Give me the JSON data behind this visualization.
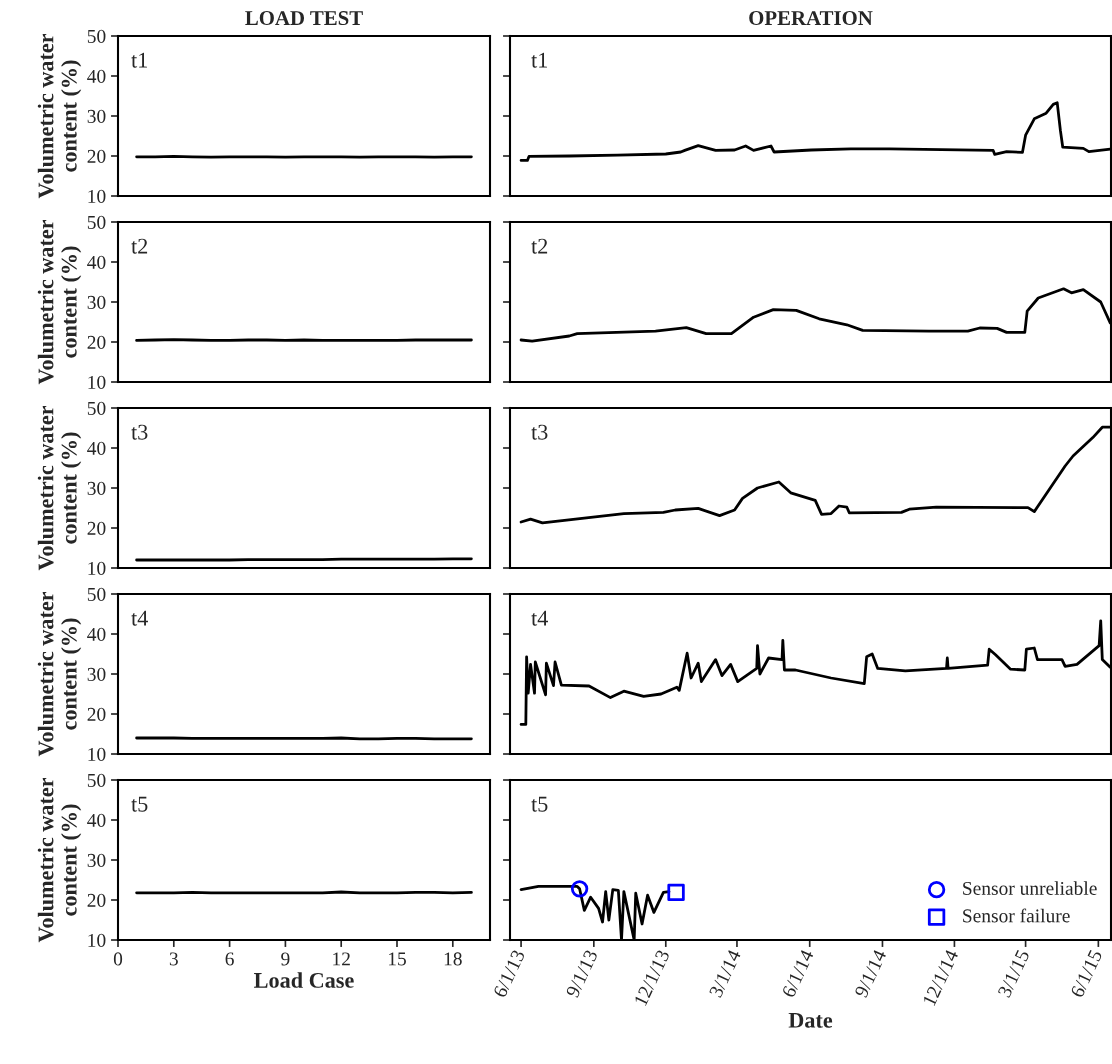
{
  "chart_data": [
    {
      "type": "line",
      "title": "LOAD TEST",
      "annotations": [
        "t1"
      ],
      "ylabel": "Volumetric water\ncontent (%)",
      "xlim": [
        0,
        20
      ],
      "xticks": [
        0,
        3,
        6,
        9,
        12,
        15,
        18
      ],
      "ylim": [
        10,
        50
      ],
      "yticks": [
        10,
        20,
        30,
        40,
        50
      ],
      "tick_labels": "y",
      "color": "#000000",
      "x": [
        1,
        2,
        3,
        4,
        5,
        6,
        7,
        8,
        9,
        10,
        11,
        12,
        13,
        14,
        15,
        16,
        17,
        18,
        19
      ],
      "values": [
        19.8,
        19.8,
        19.9,
        19.8,
        19.7,
        19.8,
        19.8,
        19.8,
        19.7,
        19.8,
        19.8,
        19.8,
        19.7,
        19.8,
        19.8,
        19.8,
        19.7,
        19.8,
        19.8
      ]
    },
    {
      "type": "line",
      "title": "OPERATION",
      "annotations": [
        "t1"
      ],
      "xlim": [
        "2013-05-18",
        "2015-06-17"
      ],
      "ylim": [
        10,
        50
      ],
      "yticks": [
        10,
        20,
        30,
        40,
        50
      ],
      "tick_labels": false,
      "color": "#000000",
      "x": [
        "2013-06-01",
        "2013-06-09",
        "2013-06-11",
        "2013-08-01",
        "2013-10-01",
        "2013-12-01",
        "2013-12-20",
        "2013-12-25",
        "2014-01-11",
        "2014-02-02",
        "2014-02-26",
        "2014-03-12",
        "2014-03-22",
        "2014-04-13",
        "2014-04-17",
        "2014-06-03",
        "2014-07-23",
        "2014-09-10",
        "2015-01-19",
        "2015-01-21",
        "2015-02-05",
        "2015-02-25",
        "2015-03-01",
        "2015-03-12",
        "2015-03-27",
        "2015-04-05",
        "2015-04-10",
        "2015-04-14",
        "2015-04-17",
        "2015-05-13",
        "2015-05-20",
        "2015-06-16"
      ],
      "values": [
        18.9,
        18.9,
        19.9,
        20.0,
        20.2,
        20.5,
        21.0,
        21.4,
        22.6,
        21.4,
        21.5,
        22.5,
        21.4,
        22.5,
        21.0,
        21.5,
        21.8,
        21.8,
        21.4,
        20.4,
        21.1,
        20.9,
        25.2,
        29.3,
        30.7,
        32.9,
        33.3,
        26.4,
        22.2,
        21.9,
        21.1,
        21.7
      ]
    },
    {
      "type": "line",
      "annotations": [
        "t2"
      ],
      "ylabel": "Volumetric water\ncontent (%)",
      "xlim": [
        0,
        20
      ],
      "xticks": [
        0,
        3,
        6,
        9,
        12,
        15,
        18
      ],
      "ylim": [
        10,
        50
      ],
      "yticks": [
        10,
        20,
        30,
        40,
        50
      ],
      "tick_labels": "y",
      "color": "#000000",
      "x": [
        1,
        2,
        3,
        4,
        5,
        6,
        7,
        8,
        9,
        10,
        11,
        12,
        13,
        14,
        15,
        16,
        17,
        18,
        19
      ],
      "values": [
        20.4,
        20.5,
        20.6,
        20.5,
        20.4,
        20.4,
        20.5,
        20.5,
        20.4,
        20.5,
        20.4,
        20.4,
        20.4,
        20.4,
        20.4,
        20.5,
        20.5,
        20.5,
        20.5
      ]
    },
    {
      "type": "line",
      "annotations": [
        "t2"
      ],
      "xlim": [
        "2013-05-18",
        "2015-06-17"
      ],
      "ylim": [
        10,
        50
      ],
      "yticks": [
        10,
        20,
        30,
        40,
        50
      ],
      "tick_labels": false,
      "color": "#000000",
      "x": [
        "2013-06-01",
        "2013-06-15",
        "2013-08-01",
        "2013-08-11",
        "2013-11-18",
        "2013-12-27",
        "2014-01-21",
        "2014-02-22",
        "2014-03-22",
        "2014-04-16",
        "2014-05-15",
        "2014-06-13",
        "2014-07-18",
        "2014-08-07",
        "2014-10-30",
        "2014-12-18",
        "2015-01-02",
        "2015-01-24",
        "2015-02-05",
        "2015-02-28",
        "2015-03-03",
        "2015-03-17",
        "2015-04-18",
        "2015-04-28",
        "2015-05-13",
        "2015-06-04",
        "2015-06-16"
      ],
      "values": [
        20.5,
        20.2,
        21.5,
        22.1,
        22.7,
        23.6,
        22.1,
        22.1,
        26.2,
        28.1,
        27.9,
        25.8,
        24.3,
        22.9,
        22.7,
        22.7,
        23.5,
        23.4,
        22.4,
        22.4,
        27.7,
        31.0,
        33.3,
        32.3,
        33.1,
        30.0,
        24.8
      ]
    },
    {
      "type": "line",
      "annotations": [
        "t3"
      ],
      "ylabel": "Volumetric water\ncontent (%)",
      "xlim": [
        0,
        20
      ],
      "xticks": [
        0,
        3,
        6,
        9,
        12,
        15,
        18
      ],
      "ylim": [
        10,
        50
      ],
      "yticks": [
        10,
        20,
        30,
        40,
        50
      ],
      "tick_labels": "y",
      "color": "#000000",
      "x": [
        1,
        2,
        3,
        4,
        5,
        6,
        7,
        8,
        9,
        10,
        11,
        12,
        13,
        14,
        15,
        16,
        17,
        18,
        19
      ],
      "values": [
        12.0,
        12.0,
        12.0,
        12.0,
        12.0,
        12.0,
        12.1,
        12.1,
        12.1,
        12.1,
        12.1,
        12.2,
        12.2,
        12.2,
        12.2,
        12.2,
        12.2,
        12.3,
        12.3
      ]
    },
    {
      "type": "line",
      "annotations": [
        "t3"
      ],
      "xlim": [
        "2013-05-18",
        "2015-06-17"
      ],
      "ylim": [
        10,
        50
      ],
      "yticks": [
        10,
        20,
        30,
        40,
        50
      ],
      "tick_labels": false,
      "color": "#000000",
      "x": [
        "2013-06-01",
        "2013-06-13",
        "2013-06-28",
        "2013-10-09",
        "2013-11-28",
        "2013-12-13",
        "2014-01-11",
        "2014-02-07",
        "2014-02-26",
        "2014-03-08",
        "2014-03-27",
        "2014-04-23",
        "2014-05-08",
        "2014-06-08",
        "2014-06-16",
        "2014-06-28",
        "2014-07-08",
        "2014-07-18",
        "2014-07-21",
        "2014-09-25",
        "2014-10-05",
        "2014-11-08",
        "2015-03-04",
        "2015-03-12",
        "2015-04-20",
        "2015-04-30",
        "2015-05-25",
        "2015-06-06",
        "2015-06-16"
      ],
      "values": [
        21.5,
        22.2,
        21.3,
        23.6,
        23.9,
        24.5,
        24.9,
        23.1,
        24.5,
        27.4,
        30.0,
        31.5,
        28.8,
        26.9,
        23.4,
        23.6,
        25.5,
        25.2,
        23.8,
        23.9,
        24.7,
        25.2,
        25.1,
        24.1,
        35.5,
        38.0,
        42.6,
        45.2,
        45.2
      ]
    },
    {
      "type": "line",
      "annotations": [
        "t4"
      ],
      "ylabel": "Volumetric water\ncontent (%)",
      "xlim": [
        0,
        20
      ],
      "xticks": [
        0,
        3,
        6,
        9,
        12,
        15,
        18
      ],
      "ylim": [
        10,
        50
      ],
      "yticks": [
        10,
        20,
        30,
        40,
        50
      ],
      "tick_labels": "y",
      "color": "#000000",
      "x": [
        1,
        2,
        3,
        4,
        5,
        6,
        7,
        8,
        9,
        10,
        11,
        12,
        13,
        14,
        15,
        16,
        17,
        18,
        19
      ],
      "values": [
        14.0,
        14.0,
        14.0,
        13.9,
        13.9,
        13.9,
        13.9,
        13.9,
        13.9,
        13.9,
        13.9,
        14.0,
        13.8,
        13.8,
        13.9,
        13.9,
        13.8,
        13.8,
        13.8
      ]
    },
    {
      "type": "line",
      "annotations": [
        "t4"
      ],
      "xlim": [
        "2013-05-18",
        "2015-06-17"
      ],
      "ylim": [
        10,
        50
      ],
      "yticks": [
        10,
        20,
        30,
        40,
        50
      ],
      "tick_labels": false,
      "color": "#000000",
      "x": [
        "2013-06-01",
        "2013-06-07",
        "2013-06-08",
        "2013-06-10",
        "2013-06-13",
        "2013-06-18",
        "2013-06-19",
        "2013-07-02",
        "2013-07-03",
        "2013-07-12",
        "2013-07-14",
        "2013-07-22",
        "2013-08-26",
        "2013-09-22",
        "2013-10-09",
        "2013-11-03",
        "2013-11-25",
        "2013-12-15",
        "2013-12-18",
        "2013-12-28",
        "2014-01-02",
        "2014-01-11",
        "2014-01-15",
        "2014-02-02",
        "2014-02-10",
        "2014-02-21",
        "2014-03-02",
        "2014-03-26",
        "2014-03-27",
        "2014-03-30",
        "2014-04-10",
        "2014-04-27",
        "2014-04-28",
        "2014-04-30",
        "2014-05-14",
        "2014-06-28",
        "2014-08-09",
        "2014-08-12",
        "2014-08-19",
        "2014-08-26",
        "2014-09-30",
        "2014-11-21",
        "2014-11-22",
        "2014-11-23",
        "2015-01-12",
        "2015-01-14",
        "2015-01-22",
        "2015-02-10",
        "2015-02-28",
        "2015-03-02",
        "2015-03-12",
        "2015-03-16",
        "2015-04-16",
        "2015-04-20",
        "2015-05-05",
        "2015-06-02",
        "2015-06-04",
        "2015-06-06",
        "2015-06-16"
      ],
      "values": [
        17.4,
        17.4,
        34.3,
        25.2,
        32.4,
        25.2,
        33.0,
        24.8,
        32.7,
        27.1,
        33.0,
        27.2,
        27.0,
        24.1,
        25.7,
        24.4,
        25.0,
        26.7,
        25.9,
        35.2,
        29.0,
        32.7,
        28.1,
        33.6,
        29.6,
        32.4,
        28.1,
        31.4,
        37.1,
        30.0,
        34.0,
        33.6,
        38.4,
        31.0,
        31.0,
        29.0,
        27.6,
        34.3,
        35.0,
        31.4,
        30.8,
        31.4,
        34.0,
        31.4,
        32.2,
        36.2,
        34.8,
        31.2,
        31.0,
        36.2,
        36.5,
        33.6,
        33.6,
        31.9,
        32.4,
        37.1,
        43.3,
        33.6,
        31.7
      ]
    },
    {
      "type": "line",
      "annotations": [
        "t5"
      ],
      "xlabel": "Load Case",
      "ylabel": "Volumetric water\ncontent (%)",
      "xlim": [
        0,
        20
      ],
      "xticks": [
        0,
        3,
        6,
        9,
        12,
        15,
        18
      ],
      "ylim": [
        10,
        50
      ],
      "yticks": [
        10,
        20,
        30,
        40,
        50
      ],
      "color": "#000000",
      "x": [
        1,
        2,
        3,
        4,
        5,
        6,
        7,
        8,
        9,
        10,
        11,
        12,
        13,
        14,
        15,
        16,
        17,
        18,
        19
      ],
      "values": [
        21.8,
        21.8,
        21.8,
        21.9,
        21.8,
        21.8,
        21.8,
        21.8,
        21.8,
        21.8,
        21.8,
        22.0,
        21.8,
        21.8,
        21.8,
        21.9,
        21.9,
        21.8,
        21.9
      ]
    },
    {
      "type": "line",
      "annotations": [
        "t5"
      ],
      "xlabel": "Date",
      "xlim": [
        "2013-05-18",
        "2015-06-17"
      ],
      "xticks": [
        {
          "value": "2013-06-01",
          "label": "6/1/13"
        },
        {
          "value": "2013-09-01",
          "label": "9/1/13"
        },
        {
          "value": "2013-12-01",
          "label": "12/1/13"
        },
        {
          "value": "2014-03-01",
          "label": "3/1/14"
        },
        {
          "value": "2014-06-01",
          "label": "6/1/14"
        },
        {
          "value": "2014-09-01",
          "label": "9/1/14"
        },
        {
          "value": "2014-12-01",
          "label": "12/1/14"
        },
        {
          "value": "2015-03-01",
          "label": "3/1/15"
        },
        {
          "value": "2015-06-01",
          "label": "6/1/15"
        }
      ],
      "ylim": [
        10,
        50
      ],
      "yticks": [
        10,
        20,
        30,
        40,
        50
      ],
      "tick_labels": "x",
      "legend": "bottom right",
      "series": [
        {
          "type": "line",
          "color": "#000000",
          "x": [
            "2013-06-01",
            "2013-06-23",
            "2013-08-11",
            "2013-08-14",
            "2013-08-20",
            "2013-08-28",
            "2013-09-07",
            "2013-09-12",
            "2013-09-16",
            "2013-09-20",
            "2013-09-25",
            "2013-10-02",
            "2013-10-06",
            "2013-10-09",
            "2013-10-22",
            "2013-10-24",
            "2013-11-01",
            "2013-11-08",
            "2013-11-16",
            "2013-11-28",
            "2013-12-05"
          ],
          "values": [
            22.6,
            23.4,
            23.4,
            22.8,
            17.4,
            20.7,
            17.9,
            14.5,
            22.1,
            15.0,
            22.6,
            22.4,
            10.0,
            22.1,
            10.0,
            21.7,
            14.0,
            21.2,
            16.9,
            21.9,
            22.1
          ]
        },
        {
          "type": "scatter",
          "name": "Sensor unreliable",
          "color": "#0000ff",
          "marker": "circle",
          "x": [
            "2013-08-14"
          ],
          "values": [
            22.8
          ]
        },
        {
          "type": "scatter",
          "name": "Sensor failure",
          "color": "#0000ff",
          "marker": "square",
          "x": [
            "2013-12-14"
          ],
          "values": [
            21.9
          ]
        }
      ]
    }
  ]
}
